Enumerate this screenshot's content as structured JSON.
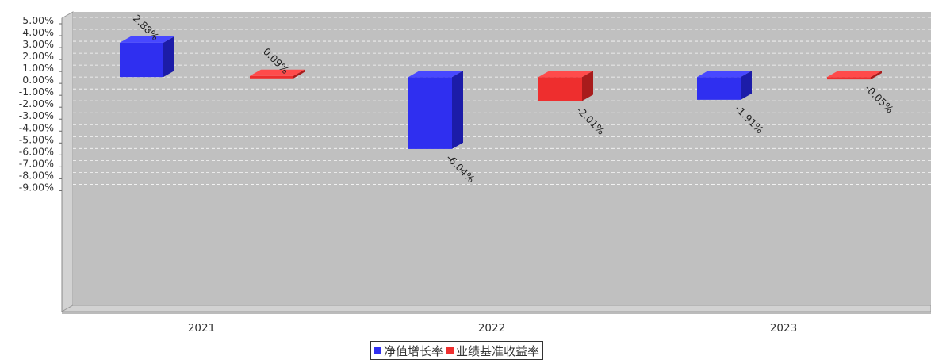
{
  "chart_data": {
    "type": "bar",
    "categories": [
      "2021",
      "2022",
      "2023"
    ],
    "series": [
      {
        "name": "净值增长率",
        "values": [
          2.88,
          -6.04,
          -1.91
        ],
        "labels": [
          "2.88%",
          "-6.04%",
          "-1.91%"
        ],
        "color": "#2f2ff0"
      },
      {
        "name": "业绩基准收益率",
        "values": [
          0.09,
          -2.01,
          -0.05
        ],
        "labels": [
          "0.09%",
          "-2.01%",
          "-0.05%"
        ],
        "color": "#ee2e2e"
      }
    ],
    "yticks": [
      "5.00%",
      "4.00%",
      "3.00%",
      "2.00%",
      "1.00%",
      "0.00%",
      "-1.00%",
      "-2.00%",
      "-3.00%",
      "-4.00%",
      "-5.00%",
      "-6.00%",
      "-7.00%",
      "-8.00%",
      "-9.00%"
    ],
    "ylim": [
      -9.5,
      5.2
    ],
    "grid": true,
    "legend": "bottom-center"
  }
}
